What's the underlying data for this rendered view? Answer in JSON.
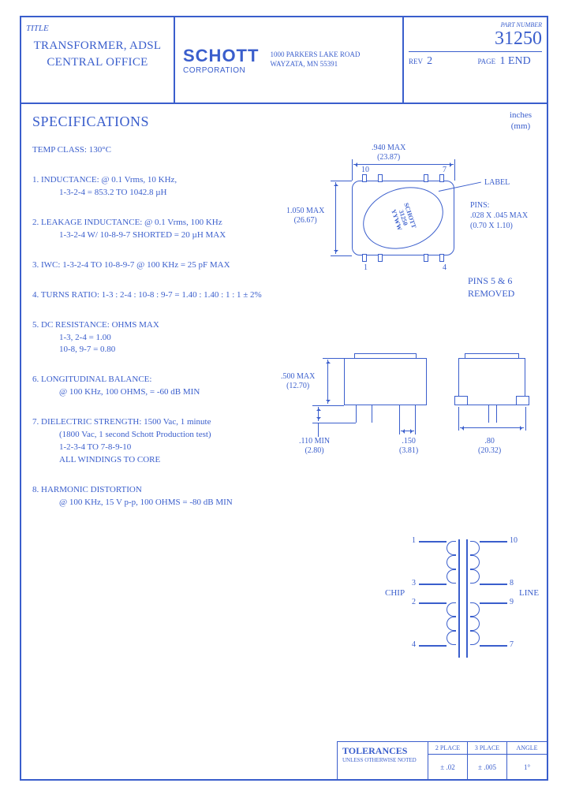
{
  "header": {
    "title_label": "TITLE",
    "title_line1": "TRANSFORMER, ADSL",
    "title_line2": "CENTRAL OFFICE",
    "logo_main": "SCHOTT",
    "logo_sub": "CORPORATION",
    "address_line1": "1000 PARKERS LAKE ROAD",
    "address_line2": "WAYZATA, MN 55391",
    "part_label": "PART NUMBER",
    "part_number": "31250",
    "rev_label": "REV",
    "rev_value": "2",
    "page_label": "PAGE",
    "page_value": "1 END"
  },
  "units": {
    "line1": "inches",
    "line2": "(mm)"
  },
  "specifications": {
    "title": "SPECIFICATIONS",
    "temp": "TEMP CLASS: 130°C",
    "items": [
      {
        "head": "1. INDUCTANCE: @ 0.1 Vrms, 10 KHz,",
        "lines": [
          "1-3-2-4 = 853.2 TO 1042.8 µH"
        ]
      },
      {
        "head": "2. LEAKAGE INDUCTANCE: @ 0.1 Vrms, 100 KHz",
        "lines": [
          "1-3-2-4 W/ 10-8-9-7 SHORTED = 20 µH MAX"
        ]
      },
      {
        "head": "3. IWC: 1-3-2-4 TO 10-8-9-7 @ 100 KHz = 25 pF MAX",
        "lines": []
      },
      {
        "head": "4. TURNS RATIO: 1-3 : 2-4 : 10-8 : 9-7 = 1.40 : 1.40 : 1 : 1 ± 2%",
        "lines": []
      },
      {
        "head": "5. DC RESISTANCE: OHMS MAX",
        "lines": [
          "1-3, 2-4 = 1.00",
          "10-8, 9-7 = 0.80"
        ]
      },
      {
        "head": "6. LONGITUDINAL BALANCE:",
        "lines": [
          "@ 100 KHz, 100 OHMS,  = -60 dB MIN"
        ]
      },
      {
        "head": "7. DIELECTRIC STRENGTH: 1500 Vac, 1 minute",
        "lines": [
          "(1800 Vac, 1 second Schott Production test)",
          "1-2-3-4 TO 7-8-9-10",
          "ALL WINDINGS TO CORE"
        ]
      },
      {
        "head": "8. HARMONIC DISTORTION",
        "lines": [
          "@ 100 KHz, 15 V p-p, 100 OHMS = -80 dB MIN"
        ]
      }
    ]
  },
  "dimensions": {
    "width": ".940 MAX",
    "width_mm": "(23.87)",
    "height": "1.050 MAX",
    "height_mm": "(26.67)",
    "side_h": ".500 MAX",
    "side_h_mm": "(12.70)",
    "lead_len": ".110 MIN",
    "lead_len_mm": "(2.80)",
    "pitch": ".150",
    "pitch_mm": "(3.81)",
    "side_w": ".80",
    "side_w_mm": "(20.32)",
    "pin_top_l": "10",
    "pin_top_r": "7",
    "pin_bot_l": "1",
    "pin_bot_r": "4"
  },
  "label_text": {
    "l1": "SCHOTT",
    "l2": "31250",
    "l3": "YYWW"
  },
  "callouts": {
    "label": "LABEL",
    "pins_h": "PINS:",
    "pins_l1": ".028 X .045 MAX",
    "pins_l2": "(0.70 X 1.10)",
    "removed_l1": "PINS 5 & 6",
    "removed_l2": "REMOVED"
  },
  "schematic": {
    "chip": "CHIP",
    "line": "LINE",
    "p1": "1",
    "p3": "3",
    "p2": "2",
    "p4": "4",
    "p10": "10",
    "p8": "8",
    "p9": "9",
    "p7": "7"
  },
  "tolerances": {
    "title": "TOLERANCES",
    "sub": "UNLESS OTHERWISE NOTED",
    "c1h": "2 PLACE",
    "c1v": "± .02",
    "c2h": "3 PLACE",
    "c2v": "± .005",
    "c3h": "ANGLE",
    "c3v": "1°"
  },
  "colors": {
    "primary": "#3a5ecc",
    "bg": "#ffffff"
  }
}
